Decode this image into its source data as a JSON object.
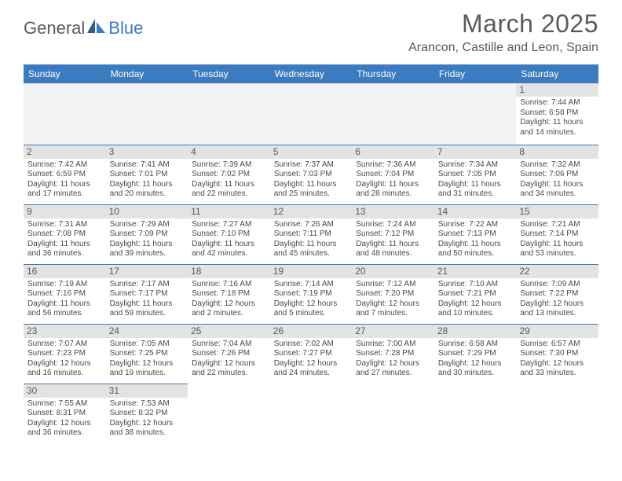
{
  "brand": {
    "general": "General",
    "blue": "Blue"
  },
  "title": "March 2025",
  "location": "Arancon, Castille and Leon, Spain",
  "colors": {
    "header_bg": "#3b7bbf",
    "header_text": "#ffffff",
    "day_num_bg": "#e3e3e3",
    "text": "#5a5a5a",
    "border": "#3b7bbf",
    "body_text": "#4a4a4a",
    "empty_bg": "#f2f2f2"
  },
  "day_headers": [
    "Sunday",
    "Monday",
    "Tuesday",
    "Wednesday",
    "Thursday",
    "Friday",
    "Saturday"
  ],
  "weeks": [
    [
      null,
      null,
      null,
      null,
      null,
      null,
      {
        "n": "1",
        "sr": "Sunrise: 7:44 AM",
        "ss": "Sunset: 6:58 PM",
        "d1": "Daylight: 11 hours",
        "d2": "and 14 minutes."
      }
    ],
    [
      {
        "n": "2",
        "sr": "Sunrise: 7:42 AM",
        "ss": "Sunset: 6:59 PM",
        "d1": "Daylight: 11 hours",
        "d2": "and 17 minutes."
      },
      {
        "n": "3",
        "sr": "Sunrise: 7:41 AM",
        "ss": "Sunset: 7:01 PM",
        "d1": "Daylight: 11 hours",
        "d2": "and 20 minutes."
      },
      {
        "n": "4",
        "sr": "Sunrise: 7:39 AM",
        "ss": "Sunset: 7:02 PM",
        "d1": "Daylight: 11 hours",
        "d2": "and 22 minutes."
      },
      {
        "n": "5",
        "sr": "Sunrise: 7:37 AM",
        "ss": "Sunset: 7:03 PM",
        "d1": "Daylight: 11 hours",
        "d2": "and 25 minutes."
      },
      {
        "n": "6",
        "sr": "Sunrise: 7:36 AM",
        "ss": "Sunset: 7:04 PM",
        "d1": "Daylight: 11 hours",
        "d2": "and 28 minutes."
      },
      {
        "n": "7",
        "sr": "Sunrise: 7:34 AM",
        "ss": "Sunset: 7:05 PM",
        "d1": "Daylight: 11 hours",
        "d2": "and 31 minutes."
      },
      {
        "n": "8",
        "sr": "Sunrise: 7:32 AM",
        "ss": "Sunset: 7:06 PM",
        "d1": "Daylight: 11 hours",
        "d2": "and 34 minutes."
      }
    ],
    [
      {
        "n": "9",
        "sr": "Sunrise: 7:31 AM",
        "ss": "Sunset: 7:08 PM",
        "d1": "Daylight: 11 hours",
        "d2": "and 36 minutes."
      },
      {
        "n": "10",
        "sr": "Sunrise: 7:29 AM",
        "ss": "Sunset: 7:09 PM",
        "d1": "Daylight: 11 hours",
        "d2": "and 39 minutes."
      },
      {
        "n": "11",
        "sr": "Sunrise: 7:27 AM",
        "ss": "Sunset: 7:10 PM",
        "d1": "Daylight: 11 hours",
        "d2": "and 42 minutes."
      },
      {
        "n": "12",
        "sr": "Sunrise: 7:26 AM",
        "ss": "Sunset: 7:11 PM",
        "d1": "Daylight: 11 hours",
        "d2": "and 45 minutes."
      },
      {
        "n": "13",
        "sr": "Sunrise: 7:24 AM",
        "ss": "Sunset: 7:12 PM",
        "d1": "Daylight: 11 hours",
        "d2": "and 48 minutes."
      },
      {
        "n": "14",
        "sr": "Sunrise: 7:22 AM",
        "ss": "Sunset: 7:13 PM",
        "d1": "Daylight: 11 hours",
        "d2": "and 50 minutes."
      },
      {
        "n": "15",
        "sr": "Sunrise: 7:21 AM",
        "ss": "Sunset: 7:14 PM",
        "d1": "Daylight: 11 hours",
        "d2": "and 53 minutes."
      }
    ],
    [
      {
        "n": "16",
        "sr": "Sunrise: 7:19 AM",
        "ss": "Sunset: 7:16 PM",
        "d1": "Daylight: 11 hours",
        "d2": "and 56 minutes."
      },
      {
        "n": "17",
        "sr": "Sunrise: 7:17 AM",
        "ss": "Sunset: 7:17 PM",
        "d1": "Daylight: 11 hours",
        "d2": "and 59 minutes."
      },
      {
        "n": "18",
        "sr": "Sunrise: 7:16 AM",
        "ss": "Sunset: 7:18 PM",
        "d1": "Daylight: 12 hours",
        "d2": "and 2 minutes."
      },
      {
        "n": "19",
        "sr": "Sunrise: 7:14 AM",
        "ss": "Sunset: 7:19 PM",
        "d1": "Daylight: 12 hours",
        "d2": "and 5 minutes."
      },
      {
        "n": "20",
        "sr": "Sunrise: 7:12 AM",
        "ss": "Sunset: 7:20 PM",
        "d1": "Daylight: 12 hours",
        "d2": "and 7 minutes."
      },
      {
        "n": "21",
        "sr": "Sunrise: 7:10 AM",
        "ss": "Sunset: 7:21 PM",
        "d1": "Daylight: 12 hours",
        "d2": "and 10 minutes."
      },
      {
        "n": "22",
        "sr": "Sunrise: 7:09 AM",
        "ss": "Sunset: 7:22 PM",
        "d1": "Daylight: 12 hours",
        "d2": "and 13 minutes."
      }
    ],
    [
      {
        "n": "23",
        "sr": "Sunrise: 7:07 AM",
        "ss": "Sunset: 7:23 PM",
        "d1": "Daylight: 12 hours",
        "d2": "and 16 minutes."
      },
      {
        "n": "24",
        "sr": "Sunrise: 7:05 AM",
        "ss": "Sunset: 7:25 PM",
        "d1": "Daylight: 12 hours",
        "d2": "and 19 minutes."
      },
      {
        "n": "25",
        "sr": "Sunrise: 7:04 AM",
        "ss": "Sunset: 7:26 PM",
        "d1": "Daylight: 12 hours",
        "d2": "and 22 minutes."
      },
      {
        "n": "26",
        "sr": "Sunrise: 7:02 AM",
        "ss": "Sunset: 7:27 PM",
        "d1": "Daylight: 12 hours",
        "d2": "and 24 minutes."
      },
      {
        "n": "27",
        "sr": "Sunrise: 7:00 AM",
        "ss": "Sunset: 7:28 PM",
        "d1": "Daylight: 12 hours",
        "d2": "and 27 minutes."
      },
      {
        "n": "28",
        "sr": "Sunrise: 6:58 AM",
        "ss": "Sunset: 7:29 PM",
        "d1": "Daylight: 12 hours",
        "d2": "and 30 minutes."
      },
      {
        "n": "29",
        "sr": "Sunrise: 6:57 AM",
        "ss": "Sunset: 7:30 PM",
        "d1": "Daylight: 12 hours",
        "d2": "and 33 minutes."
      }
    ],
    [
      {
        "n": "30",
        "sr": "Sunrise: 7:55 AM",
        "ss": "Sunset: 8:31 PM",
        "d1": "Daylight: 12 hours",
        "d2": "and 36 minutes."
      },
      {
        "n": "31",
        "sr": "Sunrise: 7:53 AM",
        "ss": "Sunset: 8:32 PM",
        "d1": "Daylight: 12 hours",
        "d2": "and 38 minutes."
      },
      null,
      null,
      null,
      null,
      null
    ]
  ]
}
